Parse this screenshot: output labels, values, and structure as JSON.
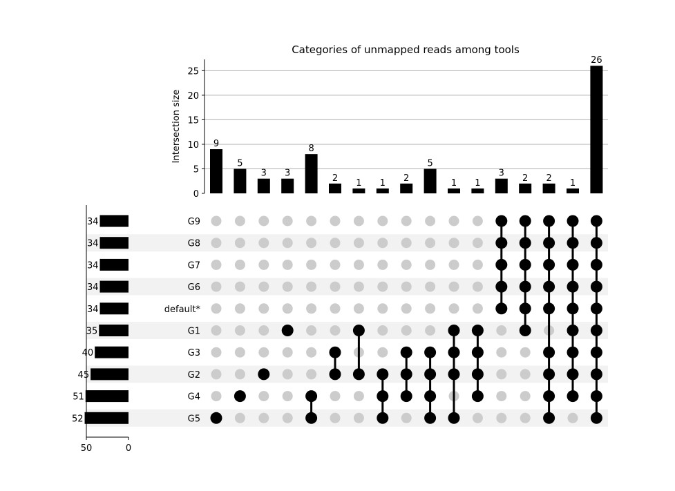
{
  "chart_data": {
    "type": "upset",
    "title": "Categories of unmapped reads among tools",
    "ylabel": "Intersection size",
    "ylim": [
      0,
      27.3
    ],
    "yticks": [
      0,
      5,
      10,
      15,
      20,
      25
    ],
    "set_size_ticks": [
      50,
      0
    ],
    "sets": [
      "G9",
      "G8",
      "G7",
      "G6",
      "default*",
      "G1",
      "G3",
      "G2",
      "G4",
      "G5"
    ],
    "set_sizes": [
      34,
      34,
      34,
      34,
      34,
      35,
      40,
      45,
      51,
      52
    ],
    "intersections": [
      {
        "size": 9,
        "members": [
          "G5"
        ]
      },
      {
        "size": 5,
        "members": [
          "G4"
        ]
      },
      {
        "size": 3,
        "members": [
          "G2"
        ]
      },
      {
        "size": 3,
        "members": [
          "G1"
        ]
      },
      {
        "size": 8,
        "members": [
          "G4",
          "G5"
        ]
      },
      {
        "size": 2,
        "members": [
          "G3",
          "G2"
        ]
      },
      {
        "size": 1,
        "members": [
          "G1",
          "G2"
        ]
      },
      {
        "size": 1,
        "members": [
          "G2",
          "G4",
          "G5"
        ]
      },
      {
        "size": 2,
        "members": [
          "G3",
          "G2",
          "G4"
        ]
      },
      {
        "size": 5,
        "members": [
          "G3",
          "G2",
          "G4",
          "G5"
        ]
      },
      {
        "size": 1,
        "members": [
          "G1",
          "G3",
          "G2",
          "G5"
        ]
      },
      {
        "size": 1,
        "members": [
          "G1",
          "G3",
          "G2",
          "G4"
        ]
      },
      {
        "size": 3,
        "members": [
          "G9",
          "G8",
          "G7",
          "G6",
          "default*"
        ]
      },
      {
        "size": 2,
        "members": [
          "G9",
          "G8",
          "G7",
          "G6",
          "default*",
          "G1"
        ]
      },
      {
        "size": 2,
        "members": [
          "G9",
          "G8",
          "G7",
          "G6",
          "default*",
          "G3",
          "G2",
          "G4",
          "G5"
        ]
      },
      {
        "size": 1,
        "members": [
          "G9",
          "G8",
          "G7",
          "G6",
          "default*",
          "G1",
          "G3",
          "G2",
          "G4"
        ]
      },
      {
        "size": 26,
        "members": [
          "G9",
          "G8",
          "G7",
          "G6",
          "default*",
          "G1",
          "G3",
          "G2",
          "G4",
          "G5"
        ]
      }
    ],
    "grid": true,
    "colors": {
      "bar": "#000000",
      "active_dot": "#000000",
      "inactive_dot": "#cccccc",
      "stripe": "#f2f2f2",
      "gridline": "#b0b0b0"
    }
  }
}
